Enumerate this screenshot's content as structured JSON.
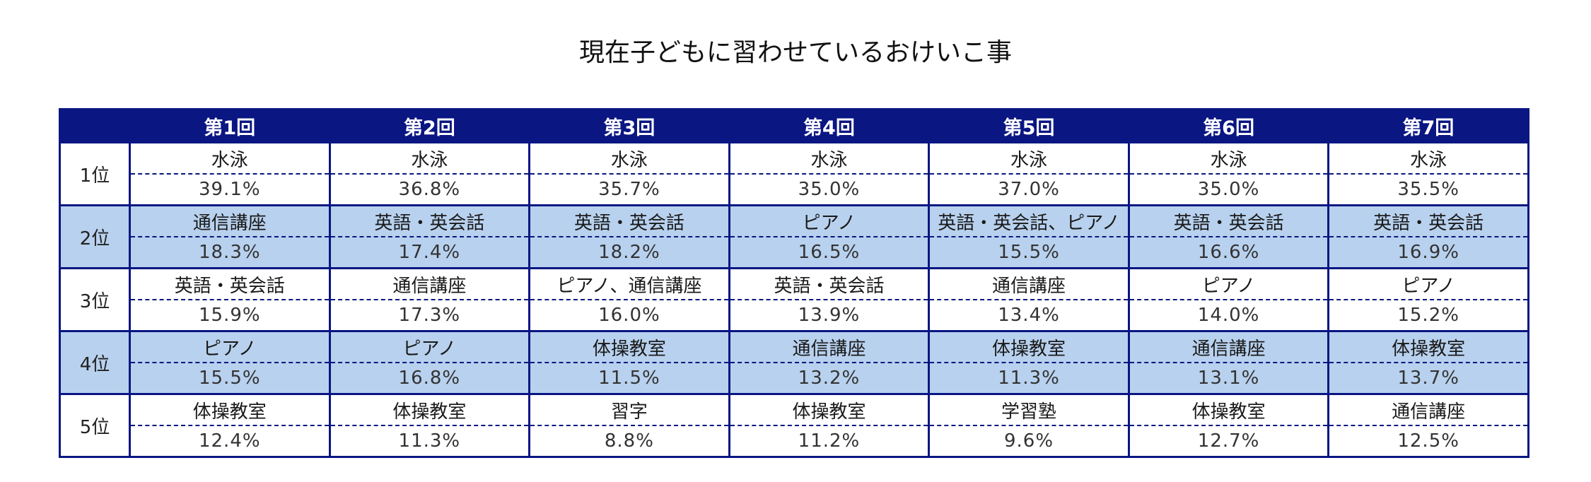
{
  "title": "現在子どもに習わせているおけいこ事",
  "rounds": [
    "第1回",
    "第2回",
    "第3回",
    "第4回",
    "第5回",
    "第6回",
    "第7回"
  ],
  "ranks": [
    {
      "label": "1位",
      "items": [
        "水泳",
        "水泳",
        "水泳",
        "水泳",
        "水泳",
        "水泳",
        "水泳"
      ],
      "percents": [
        "39.1%",
        "36.8%",
        "35.7%",
        "35.0%",
        "37.0%",
        "35.0%",
        "35.5%"
      ]
    },
    {
      "label": "2位",
      "items": [
        "通信講座",
        "英語・英会話",
        "英語・英会話",
        "ピアノ",
        "英語・英会話、ピアノ",
        "英語・英会話",
        "英語・英会話"
      ],
      "percents": [
        "18.3%",
        "17.4%",
        "18.2%",
        "16.5%",
        "15.5%",
        "16.6%",
        "16.9%"
      ]
    },
    {
      "label": "3位",
      "items": [
        "英語・英会話",
        "通信講座",
        "ピアノ、通信講座",
        "英語・英会話",
        "通信講座",
        "ピアノ",
        "ピアノ"
      ],
      "percents": [
        "15.9%",
        "17.3%",
        "16.0%",
        "13.9%",
        "13.4%",
        "14.0%",
        "15.2%"
      ]
    },
    {
      "label": "4位",
      "items": [
        "ピアノ",
        "ピアノ",
        "体操教室",
        "通信講座",
        "体操教室",
        "通信講座",
        "体操教室"
      ],
      "percents": [
        "15.5%",
        "16.8%",
        "11.5%",
        "13.2%",
        "11.3%",
        "13.1%",
        "13.7%"
      ]
    },
    {
      "label": "5位",
      "items": [
        "体操教室",
        "体操教室",
        "習字",
        "体操教室",
        "学習塾",
        "体操教室",
        "通信講座"
      ],
      "percents": [
        "12.4%",
        "11.3%",
        "8.8%",
        "11.2%",
        "9.6%",
        "12.7%",
        "12.5%"
      ]
    }
  ],
  "colors": {
    "header_bg": "#0a1682",
    "header_text": "#ffffff",
    "border": "#0a1682",
    "shaded_row_bg": "#b8d1ee",
    "plain_row_bg": "#ffffff"
  }
}
